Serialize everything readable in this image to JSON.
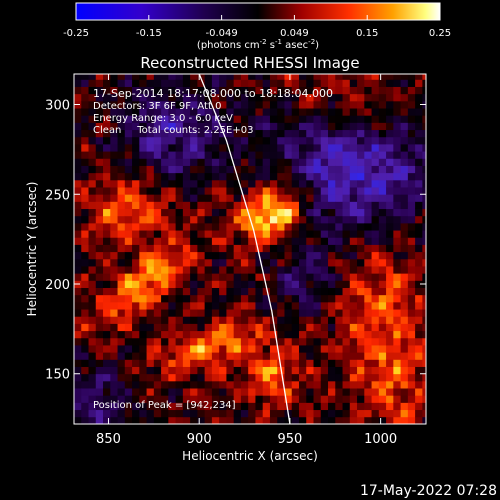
{
  "chart_data": {
    "type": "heatmap",
    "title": "Reconstructed RHESSI Image",
    "xlabel": "Heliocentric X (arcsec)",
    "ylabel": "Heliocentric Y (arcsec)",
    "xlim": [
      831,
      1025
    ],
    "ylim": [
      122,
      317
    ],
    "x_ticks": [
      850,
      900,
      950,
      1000
    ],
    "y_ticks": [
      150,
      200,
      250,
      300
    ],
    "colorbar": {
      "min": -0.25,
      "max": 0.25,
      "ticks": [
        "-0.25",
        "-0.15",
        "-0.049",
        "0.049",
        "0.15",
        "0.25"
      ],
      "unit_label": "(photons cm",
      "unit_sup1": "-2",
      "unit_mid": " s",
      "unit_sup2": "-1",
      "unit_mid2": " asec",
      "unit_sup3": "-2",
      "unit_end": ")"
    },
    "annotations": {
      "time_range": "17-Sep-2014 18:17:08.000 to 18:18:04.000",
      "detectors": "Detectors: 3F 6F 9F, Att 0",
      "energy": "Energy Range: 3.0 - 6.0 keV",
      "clean": "Clean     Total counts: 2.25E+03",
      "peak": "Position of Peak = [942,234]"
    },
    "peak": [
      942,
      234
    ],
    "limb_curve": [
      [
        900,
        317
      ],
      [
        915,
        280
      ],
      [
        930,
        230
      ],
      [
        940,
        185
      ],
      [
        950,
        122
      ]
    ],
    "emission_sources": [
      {
        "x": 940,
        "y": 240,
        "amp": 0.25,
        "sx": 14,
        "sy": 10,
        "rot": -0.6
      },
      {
        "x": 870,
        "y": 200,
        "amp": 0.16,
        "sx": 22,
        "sy": 8,
        "rot": -0.7
      },
      {
        "x": 905,
        "y": 165,
        "amp": 0.14,
        "sx": 20,
        "sy": 8,
        "rot": -0.3
      },
      {
        "x": 940,
        "y": 150,
        "amp": 0.13,
        "sx": 10,
        "sy": 12,
        "rot": 0.0
      },
      {
        "x": 860,
        "y": 240,
        "amp": 0.12,
        "sx": 16,
        "sy": 14,
        "rot": -0.5
      },
      {
        "x": 1000,
        "y": 185,
        "amp": 0.1,
        "sx": 20,
        "sy": 30,
        "rot": 0.0
      },
      {
        "x": 985,
        "y": 300,
        "amp": 0.09,
        "sx": 25,
        "sy": 14,
        "rot": 0.4
      },
      {
        "x": 1010,
        "y": 140,
        "amp": 0.08,
        "sx": 12,
        "sy": 18,
        "rot": 0.0
      }
    ],
    "negative_regions": [
      {
        "x": 985,
        "y": 265,
        "amp": -0.2,
        "sx": 30,
        "sy": 25
      },
      {
        "x": 885,
        "y": 285,
        "amp": -0.14,
        "sx": 20,
        "sy": 18
      },
      {
        "x": 840,
        "y": 135,
        "amp": -0.12,
        "sx": 14,
        "sy": 14
      },
      {
        "x": 960,
        "y": 200,
        "amp": -0.1,
        "sx": 12,
        "sy": 14
      }
    ]
  },
  "footer": {
    "timestamp": "17-May-2022 07:28"
  }
}
